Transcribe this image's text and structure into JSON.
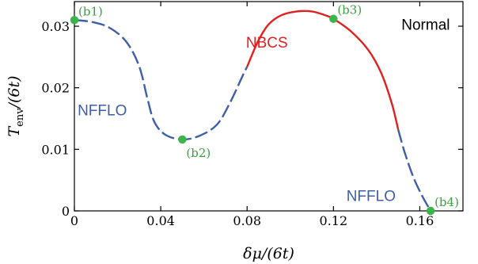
{
  "chart_data": {
    "type": "line",
    "xlabel": "δμ/(6t)",
    "ylabel": "T_env/(6t)",
    "ylabel_main": "T",
    "ylabel_sub": "env",
    "ylabel_rest": "/(6t)",
    "xlim": [
      0,
      0.18
    ],
    "ylim": [
      0,
      0.034
    ],
    "x_ticks": [
      0,
      0.04,
      0.08,
      0.12,
      0.16
    ],
    "x_tick_labels": [
      "0",
      "0.04",
      "0.08",
      "0.12",
      "0.16"
    ],
    "y_ticks": [
      0,
      0.01,
      0.02,
      0.03
    ],
    "y_tick_labels": [
      "0",
      "0.01",
      "0.02",
      "0.03"
    ],
    "grid": false,
    "series": [
      {
        "style": "dashed",
        "color": "#3d5fa8",
        "points": [
          [
            0,
            0.031
          ],
          [
            0.008,
            0.0307
          ],
          [
            0.016,
            0.0298
          ],
          [
            0.024,
            0.0275
          ],
          [
            0.03,
            0.0235
          ],
          [
            0.034,
            0.018
          ],
          [
            0.037,
            0.0145
          ],
          [
            0.042,
            0.0124
          ],
          [
            0.05,
            0.0116
          ],
          [
            0.058,
            0.0122
          ],
          [
            0.066,
            0.014
          ],
          [
            0.072,
            0.0175
          ],
          [
            0.078,
            0.022
          ],
          [
            0.08,
            0.0234
          ]
        ]
      },
      {
        "style": "solid",
        "color": "#e02020",
        "points": [
          [
            0.08,
            0.0234
          ],
          [
            0.085,
            0.0275
          ],
          [
            0.09,
            0.0303
          ],
          [
            0.096,
            0.0318
          ],
          [
            0.103,
            0.0324
          ],
          [
            0.11,
            0.0324
          ],
          [
            0.116,
            0.0318
          ],
          [
            0.12,
            0.0312
          ],
          [
            0.128,
            0.0292
          ],
          [
            0.136,
            0.0262
          ],
          [
            0.142,
            0.0225
          ],
          [
            0.147,
            0.0175
          ],
          [
            0.15,
            0.0132
          ]
        ]
      },
      {
        "style": "dashed",
        "color": "#3d5fa8",
        "points": [
          [
            0.15,
            0.0132
          ],
          [
            0.153,
            0.0095
          ],
          [
            0.157,
            0.0055
          ],
          [
            0.161,
            0.0025
          ],
          [
            0.165,
            0.0
          ]
        ]
      }
    ],
    "points": [
      {
        "label": "(b1)",
        "x": 0,
        "y": 0.031
      },
      {
        "label": "(b2)",
        "x": 0.05,
        "y": 0.0116
      },
      {
        "label": "(b3)",
        "x": 0.12,
        "y": 0.0312
      },
      {
        "label": "(b4)",
        "x": 0.165,
        "y": 0.0
      }
    ],
    "annotations": [
      {
        "text": "NFFLO",
        "x": 0.0015,
        "y": 0.0155,
        "color": "#3d5fa8"
      },
      {
        "text": "NBCS",
        "x": 0.0795,
        "y": 0.0265,
        "color": "#e02020"
      },
      {
        "text": "NFFLO",
        "x": 0.126,
        "y": 0.0016,
        "color": "#3d5fa8"
      },
      {
        "text": "Normal",
        "x": 0.1515,
        "y": 0.0294,
        "color": "#000000"
      }
    ],
    "colors": {
      "nfflo": "#3d5fa8",
      "nbcs": "#e02020",
      "point": "#3bb54a",
      "point_label": "#3a9e3e"
    }
  }
}
